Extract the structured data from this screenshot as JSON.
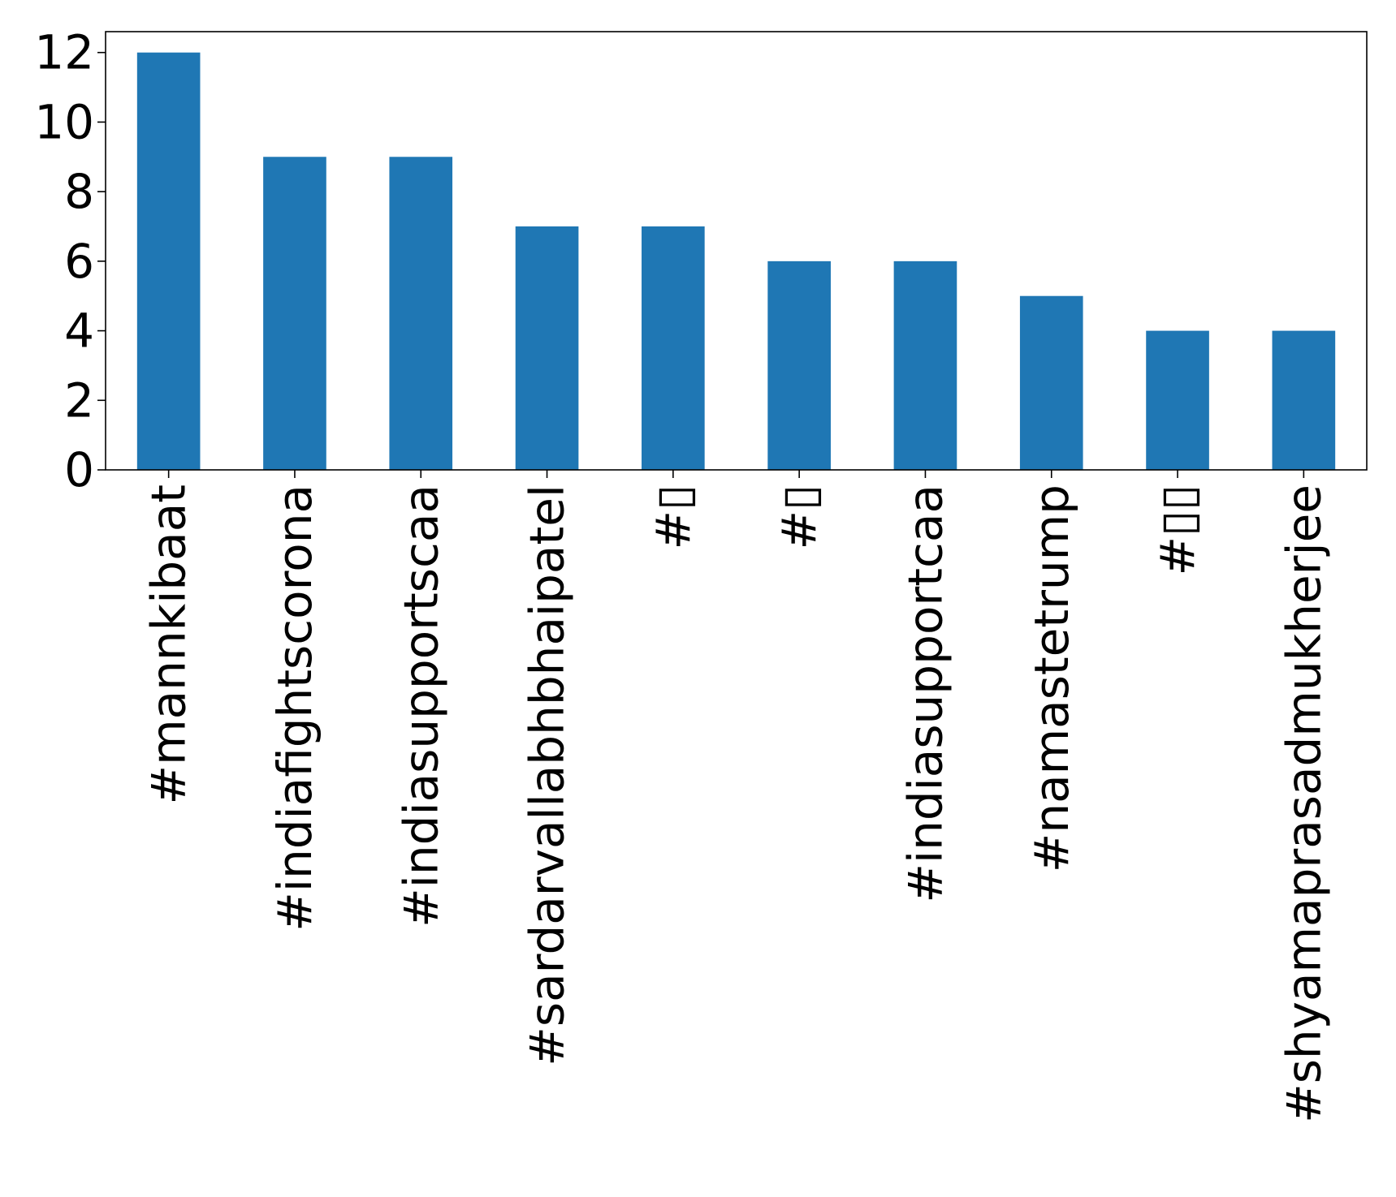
{
  "chart_data": {
    "type": "bar",
    "title": "",
    "xlabel": "",
    "ylabel": "",
    "categories": [
      "#mannkibaat",
      "#indiafightscorona",
      "#indiasupportscaa",
      "#sardarvallabhbhaipatel",
      "#▯",
      "#▯",
      "#indiasupportcaa",
      "#namastetrump",
      "#▯▯",
      "#shyamaprasadmukherjee"
    ],
    "series": [
      {
        "values": [
          12,
          9,
          9,
          7,
          7,
          6,
          6,
          5,
          4,
          4
        ],
        "color": "#1f77b4"
      }
    ],
    "ylim": [
      0,
      12.6
    ],
    "yticks": [
      0,
      2,
      4,
      6,
      8,
      10,
      12
    ],
    "grid": false,
    "legend": "none"
  }
}
